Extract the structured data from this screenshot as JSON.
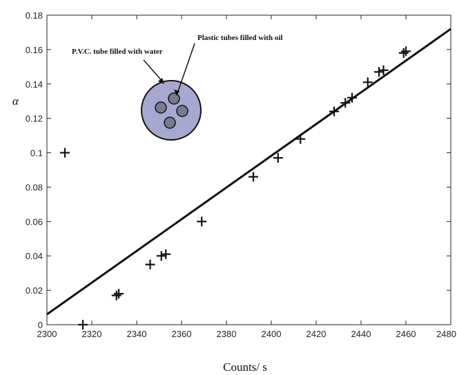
{
  "chart_data": {
    "type": "scatter",
    "title": "",
    "xlabel": "Counts/ s",
    "ylabel": "α",
    "xlim": [
      2300,
      2480
    ],
    "ylim": [
      0,
      0.18
    ],
    "xticks": [
      "2300",
      "2320",
      "2340",
      "2360",
      "2380",
      "2400",
      "2420",
      "2440",
      "2460",
      "2480"
    ],
    "yticks": [
      "0",
      "0.02",
      "0.04",
      "0.06",
      "0.08",
      "0.1",
      "0.12",
      "0.14",
      "0.16",
      "0.18"
    ],
    "grid": false,
    "series": [
      {
        "marker": "+",
        "x": [
          2308,
          2316,
          2331,
          2332,
          2346,
          2351,
          2353,
          2369,
          2392,
          2403,
          2413,
          2428,
          2433,
          2436,
          2443,
          2448,
          2450,
          2459,
          2460
        ],
        "y": [
          0.1,
          0.0,
          0.017,
          0.018,
          0.035,
          0.04,
          0.041,
          0.06,
          0.086,
          0.097,
          0.108,
          0.124,
          0.129,
          0.132,
          0.141,
          0.147,
          0.148,
          0.158,
          0.159
        ]
      }
    ],
    "fit_line": {
      "x": [
        2300,
        2480
      ],
      "y": [
        0.006,
        0.172
      ]
    },
    "annotations": [
      "P.V.C. tube filled with water",
      "Plastic  tubes filled with oil"
    ],
    "colors": {
      "inset_fill": "#a7a8cf",
      "ink": "#111111"
    }
  }
}
